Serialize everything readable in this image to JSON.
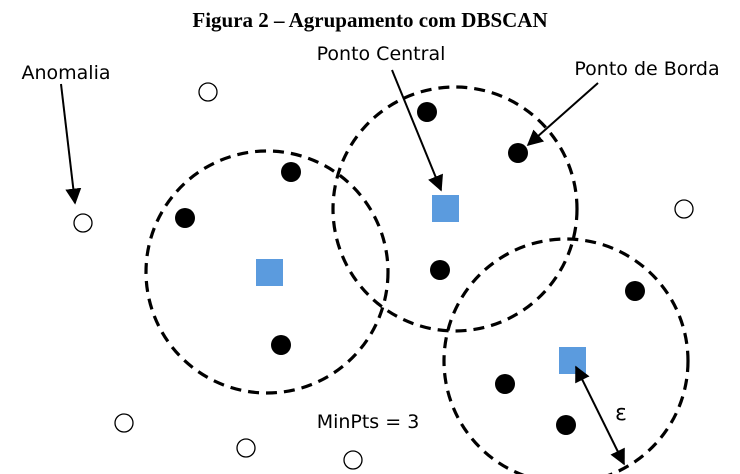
{
  "figure": {
    "title": "Figura 2 – Agrupamento com DBSCAN",
    "labels": {
      "anomaly": "Anomalia",
      "core_point": "Ponto Central",
      "border_point": "Ponto de Borda",
      "min_pts": "MinPts = 3",
      "epsilon": "ε"
    },
    "colors": {
      "core_point": "#5b9bde",
      "border_point": "#000000",
      "anomaly_point": "#ffffff",
      "circle_stroke": "#000000"
    },
    "legend_items": {
      "core_marker": "square",
      "border_marker": "filled-circle",
      "anomaly_marker": "hollow-circle",
      "neighborhood": "dashed-circle"
    },
    "counts": {
      "neighborhoods": 3,
      "core_points": 3,
      "border_points": 9,
      "anomalies": 6
    }
  }
}
